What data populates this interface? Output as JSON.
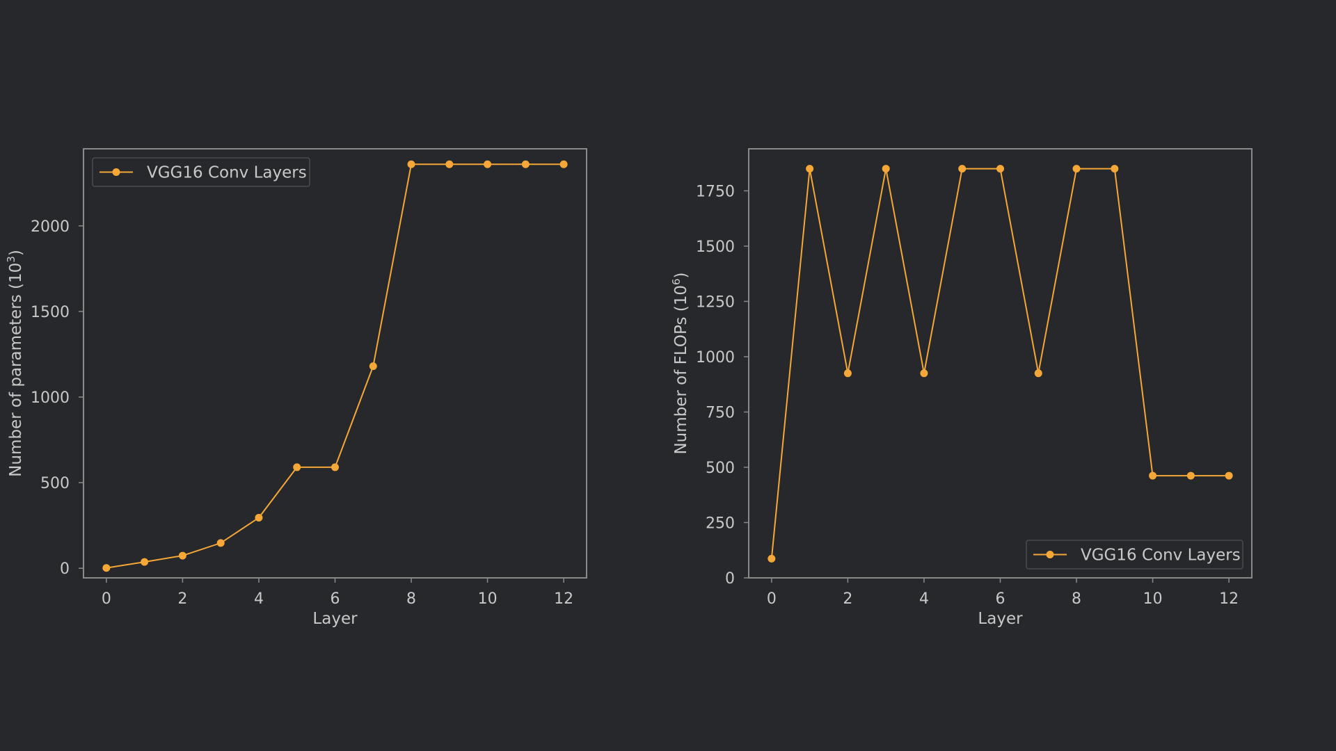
{
  "colors": {
    "background": "#27282b",
    "axes_frame": "#8a8a8a",
    "text": "#c9c9c9",
    "series": "#f5a838"
  },
  "chart_data": [
    {
      "type": "line",
      "markers": true,
      "x": [
        0,
        1,
        2,
        3,
        4,
        5,
        6,
        7,
        8,
        9,
        10,
        11,
        12
      ],
      "series": [
        {
          "name": "VGG16 Conv Layers",
          "values": [
            1.7,
            36.9,
            73.7,
            147.5,
            295.2,
            590.1,
            590.1,
            1180.2,
            2359.8,
            2359.8,
            2359.8,
            2359.8,
            2359.8
          ]
        }
      ],
      "xlabel": "Layer",
      "ylabel": "Number of parameters (10",
      "ylabel_exponent": "3",
      "ylabel_suffix": ")",
      "xlim": [
        -0.6,
        12.6
      ],
      "ylim": [
        -56,
        2450
      ],
      "xticks": [
        0,
        2,
        4,
        6,
        8,
        10,
        12
      ],
      "yticks": [
        0,
        500,
        1000,
        1500,
        2000
      ],
      "grid": false,
      "legend_position": "top-left"
    },
    {
      "type": "line",
      "markers": true,
      "x": [
        0,
        1,
        2,
        3,
        4,
        5,
        6,
        7,
        8,
        9,
        10,
        11,
        12
      ],
      "series": [
        {
          "name": "VGG16 Conv Layers",
          "values": [
            87,
            1850,
            925,
            1850,
            925,
            1850,
            1850,
            925,
            1850,
            1850,
            462,
            462,
            462
          ]
        }
      ],
      "xlabel": "Layer",
      "ylabel": "Number of FLOPs (10",
      "ylabel_exponent": "6",
      "ylabel_suffix": ")",
      "xlim": [
        -0.6,
        12.6
      ],
      "ylim": [
        0,
        1940
      ],
      "xticks": [
        0,
        2,
        4,
        6,
        8,
        10,
        12
      ],
      "yticks": [
        0,
        250,
        500,
        750,
        1000,
        1250,
        1500,
        1750
      ],
      "grid": false,
      "legend_position": "bottom-right"
    }
  ]
}
